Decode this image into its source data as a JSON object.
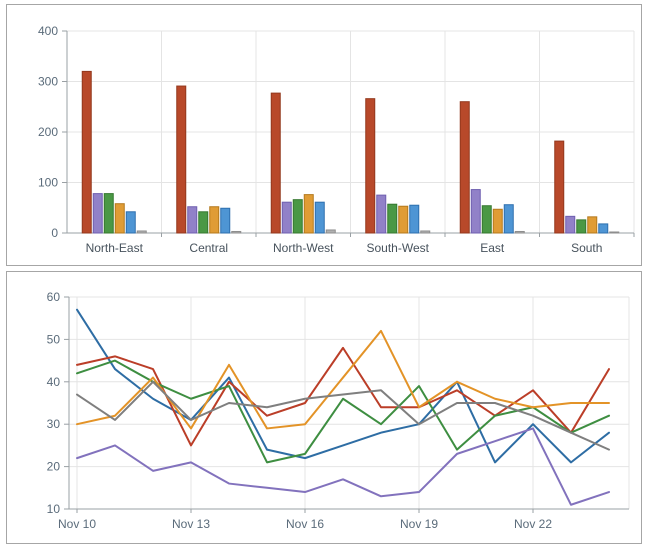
{
  "window": {
    "background": "#ffffff",
    "panel_border": "#a6a6a6"
  },
  "axis_style": {
    "tick_color": "#5a6b7a",
    "category_color": "#47525c",
    "grid_color": "#e4e4e4",
    "axis_color": "#9aa0a4",
    "tick_font_size": 12
  },
  "chart_data": [
    {
      "type": "bar",
      "title": "",
      "xlabel": "",
      "ylabel": "",
      "legend": "none",
      "grid": true,
      "ylim": [
        0,
        400
      ],
      "yticks": [
        0,
        100,
        200,
        300,
        400
      ],
      "categories": [
        "North-East",
        "Central",
        "North-West",
        "South-West",
        "East",
        "South"
      ],
      "series": [
        {
          "name": "red",
          "color": "#b8492a",
          "border": "#93381d",
          "values": [
            320,
            291,
            277,
            266,
            260,
            182
          ]
        },
        {
          "name": "purple",
          "color": "#9181c8",
          "border": "#6f5fb0",
          "values": [
            78,
            52,
            61,
            75,
            86,
            33
          ]
        },
        {
          "name": "green",
          "color": "#4a9845",
          "border": "#35782f",
          "values": [
            78,
            42,
            66,
            57,
            54,
            26
          ]
        },
        {
          "name": "orange",
          "color": "#e09c35",
          "border": "#b4791c",
          "values": [
            58,
            52,
            76,
            53,
            47,
            32
          ]
        },
        {
          "name": "blue",
          "color": "#4e95d4",
          "border": "#2d6fae",
          "values": [
            42,
            49,
            61,
            55,
            56,
            18
          ]
        },
        {
          "name": "gray",
          "color": "#b0b0b0",
          "border": "#8e8e8e",
          "values": [
            4,
            3,
            6,
            4,
            3,
            2
          ]
        }
      ]
    },
    {
      "type": "line",
      "title": "",
      "xlabel": "",
      "ylabel": "",
      "legend": "none",
      "grid": true,
      "ylim": [
        10,
        60
      ],
      "yticks": [
        10,
        20,
        30,
        40,
        50,
        60
      ],
      "x": [
        "Nov 10",
        "Nov 11",
        "Nov 12",
        "Nov 13",
        "Nov 14",
        "Nov 15",
        "Nov 16",
        "Nov 17",
        "Nov 18",
        "Nov 19",
        "Nov 20",
        "Nov 21",
        "Nov 22",
        "Nov 23",
        "Nov 24"
      ],
      "xtick_indices": [
        0,
        3,
        6,
        9,
        12
      ],
      "xtick_labels": [
        "Nov 10",
        "Nov 13",
        "Nov 16",
        "Nov 19",
        "Nov 22"
      ],
      "series": [
        {
          "name": "blue",
          "color": "#2e6da4",
          "values": [
            57,
            43,
            36,
            31,
            41,
            24,
            22,
            25,
            28,
            30,
            40,
            21,
            30,
            21,
            28
          ]
        },
        {
          "name": "red",
          "color": "#bb3e28",
          "values": [
            44,
            46,
            43,
            25,
            40,
            32,
            35,
            48,
            34,
            34,
            38,
            32,
            38,
            28,
            43
          ]
        },
        {
          "name": "green",
          "color": "#3e8e41",
          "values": [
            42,
            45,
            40,
            36,
            39,
            21,
            23,
            36,
            30,
            39,
            24,
            32,
            34,
            28,
            32
          ]
        },
        {
          "name": "orange",
          "color": "#e39327",
          "values": [
            30,
            32,
            41,
            29,
            44,
            29,
            30,
            41,
            52,
            34,
            40,
            36,
            34,
            35,
            35
          ]
        },
        {
          "name": "gray",
          "color": "#7f7f7f",
          "values": [
            37,
            31,
            40,
            31,
            35,
            34,
            36,
            37,
            38,
            30,
            35,
            35,
            32,
            28,
            24
          ]
        },
        {
          "name": "purple",
          "color": "#8272bd",
          "values": [
            22,
            25,
            19,
            21,
            16,
            15,
            14,
            17,
            13,
            14,
            23,
            26,
            29,
            11,
            14
          ]
        }
      ]
    }
  ]
}
